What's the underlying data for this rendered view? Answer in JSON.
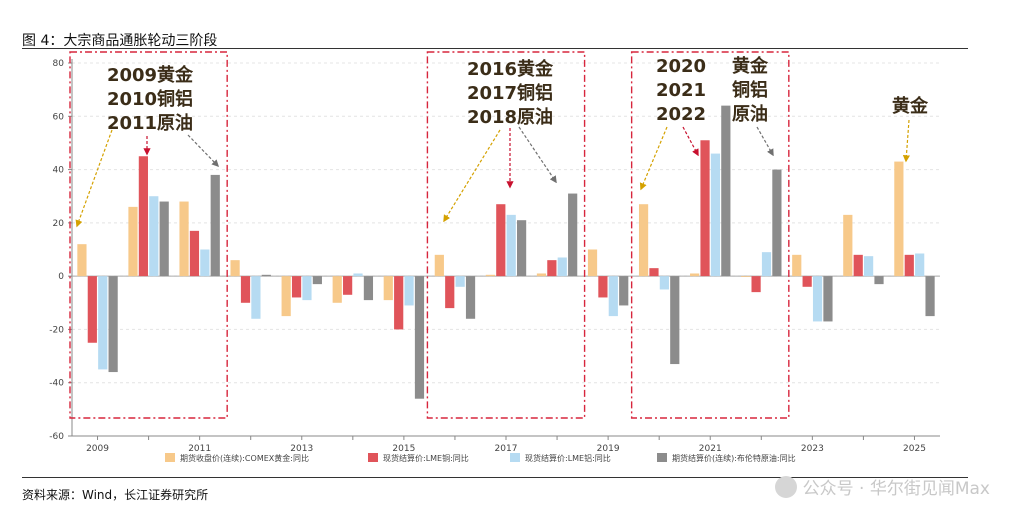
{
  "header": {
    "title": "图 4：大宗商品通胀轮动三阶段"
  },
  "footer": {
    "source": "资料来源：Wind，长江证券研究所",
    "watermark": "公众号 · 华尔街见闻Max"
  },
  "colors": {
    "gold": "#F7C98A",
    "copper": "#E0545A",
    "aluminum": "#B6DBF2",
    "oil": "#8C8C8C",
    "frame": "#D7263D",
    "arrow_gold": "#D4A100",
    "arrow_red": "#C8102E",
    "arrow_grey": "#707070"
  },
  "chart_data": {
    "type": "bar",
    "categories": [
      "2009",
      "2010",
      "2011",
      "2012",
      "2013",
      "2014",
      "2015",
      "2016",
      "2017",
      "2018",
      "2019",
      "2020",
      "2021",
      "2022",
      "2023",
      "2024",
      "2025"
    ],
    "x_tick_labels": [
      "2009",
      "2011",
      "2013",
      "2015",
      "2017",
      "2019",
      "2021",
      "2023",
      "2025"
    ],
    "ylim": [
      -60,
      80
    ],
    "y_ticks": [
      -60,
      -40,
      -20,
      0,
      20,
      40,
      60,
      80
    ],
    "grid": true,
    "legend_position": "bottom",
    "series": [
      {
        "name": "期货收盘价(连续):COMEX黄金:同比",
        "values": [
          12,
          26,
          28,
          6,
          -15,
          -10,
          -9,
          8,
          0.5,
          1,
          10,
          27,
          1,
          0,
          8,
          23,
          43
        ]
      },
      {
        "name": "现货结算价:LME铜:同比",
        "values": [
          -25,
          45,
          17,
          -10,
          -8,
          -7,
          -20,
          -12,
          27,
          6,
          -8,
          3,
          51,
          -6,
          -4,
          8,
          8
        ]
      },
      {
        "name": "现货结算价:LME铝:同比",
        "values": [
          -35,
          30,
          10,
          -16,
          -9,
          1,
          -11,
          -4,
          23,
          7,
          -15,
          -5,
          46,
          9,
          -17,
          7.5,
          8.5
        ]
      },
      {
        "name": "期货结算价(连续):布伦特原油:同比",
        "values": [
          -36,
          28,
          38,
          0.5,
          -3,
          -9,
          -46,
          -16,
          21,
          31,
          -11,
          -33,
          64,
          40,
          -17,
          -3,
          -15
        ]
      }
    ],
    "annotations": [
      {
        "lines": [
          "2009黄金",
          "2010铜铝",
          "2011原油"
        ]
      },
      {
        "lines": [
          "2016黄金",
          "2017铜铝",
          "2018原油"
        ]
      },
      {
        "lines": [
          "2020",
          "2021",
          "2022"
        ]
      },
      {
        "lines": [
          "黄金",
          "铜铝",
          "原油"
        ]
      },
      {
        "lines": [
          "黄金"
        ]
      }
    ]
  }
}
